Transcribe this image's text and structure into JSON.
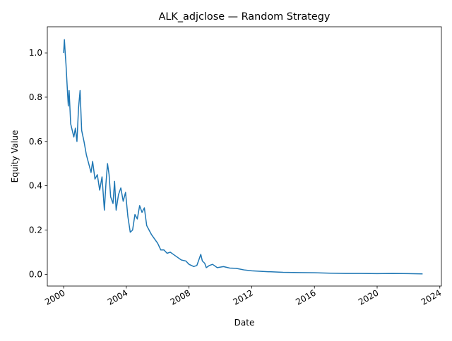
{
  "chart_data": {
    "type": "line",
    "title": "ALK_adjclose — Random Strategy",
    "x_label": "Date",
    "y_label": "Equity Value",
    "series": [
      {
        "name": "Equity",
        "color": "#1f77b4",
        "x": [
          2000.0,
          2000.05,
          2000.1,
          2000.15,
          2000.25,
          2000.3,
          2000.35,
          2000.45,
          2000.55,
          2000.65,
          2000.75,
          2000.85,
          2000.95,
          2001.05,
          2001.15,
          2001.3,
          2001.45,
          2001.6,
          2001.75,
          2001.85,
          2002.0,
          2002.15,
          2002.3,
          2002.45,
          2002.6,
          2002.7,
          2002.8,
          2002.9,
          2003.0,
          2003.15,
          2003.25,
          2003.35,
          2003.5,
          2003.65,
          2003.8,
          2003.95,
          2004.1,
          2004.25,
          2004.4,
          2004.55,
          2004.7,
          2004.85,
          2005.0,
          2005.15,
          2005.3,
          2005.45,
          2005.6,
          2005.8,
          2006.0,
          2006.2,
          2006.4,
          2006.6,
          2006.8,
          2007.0,
          2007.2,
          2007.5,
          2007.8,
          2008.0,
          2008.3,
          2008.5,
          2008.65,
          2008.75,
          2008.85,
          2009.0,
          2009.1,
          2009.3,
          2009.5,
          2009.8,
          2010.2,
          2010.6,
          2011.0,
          2011.5,
          2012.0,
          2013.0,
          2014.0,
          2015.0,
          2016.0,
          2017.0,
          2018.0,
          2019.0,
          2020.0,
          2021.0,
          2022.0,
          2022.9
        ],
        "values": [
          1.0,
          1.06,
          1.0,
          0.95,
          0.82,
          0.76,
          0.83,
          0.68,
          0.65,
          0.62,
          0.66,
          0.6,
          0.75,
          0.83,
          0.65,
          0.6,
          0.54,
          0.5,
          0.46,
          0.51,
          0.43,
          0.45,
          0.38,
          0.44,
          0.29,
          0.41,
          0.5,
          0.45,
          0.35,
          0.32,
          0.42,
          0.29,
          0.36,
          0.39,
          0.33,
          0.37,
          0.26,
          0.19,
          0.2,
          0.27,
          0.25,
          0.31,
          0.28,
          0.3,
          0.22,
          0.2,
          0.18,
          0.16,
          0.14,
          0.11,
          0.11,
          0.095,
          0.1,
          0.09,
          0.08,
          0.065,
          0.06,
          0.045,
          0.035,
          0.04,
          0.07,
          0.09,
          0.06,
          0.05,
          0.03,
          0.04,
          0.045,
          0.03,
          0.035,
          0.028,
          0.027,
          0.02,
          0.016,
          0.012,
          0.009,
          0.008,
          0.007,
          0.005,
          0.004,
          0.004,
          0.003,
          0.004,
          0.003,
          0.002
        ]
      }
    ],
    "xlim": [
      1998.96,
      2024.1
    ],
    "xticks": [
      2000,
      2004,
      2008,
      2012,
      2016,
      2020,
      2024
    ],
    "ylim": [
      -0.053,
      1.118
    ],
    "yticks": [
      {
        "value": 0,
        "label": "0.0"
      },
      0.2,
      0.4,
      0.6,
      0.8,
      {
        "value": 1,
        "label": "1.0"
      }
    ],
    "grid": false
  }
}
